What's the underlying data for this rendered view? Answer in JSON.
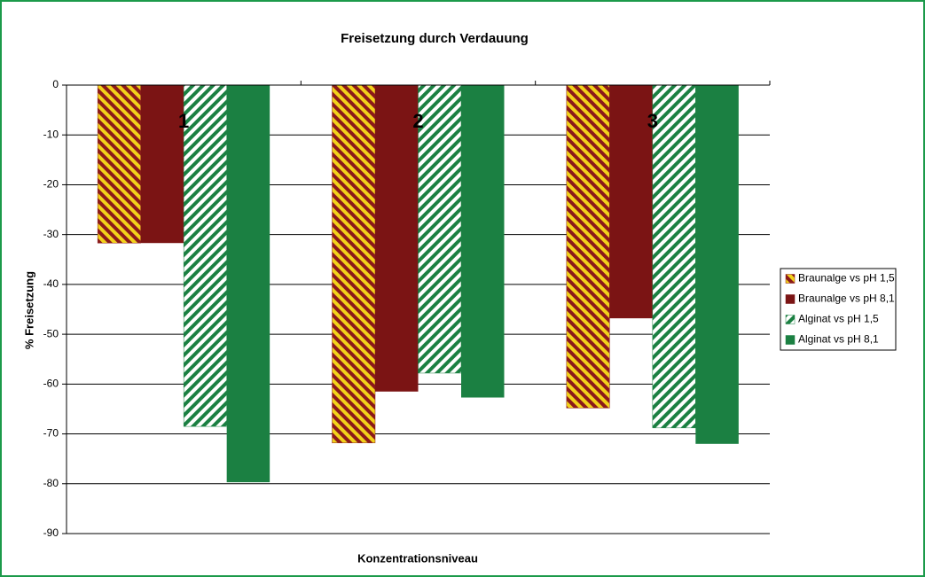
{
  "chart_data": {
    "type": "bar",
    "title": "Freisetzung durch Verdauung",
    "x_label": "Konzentrationsniveau",
    "y_label": "% Freisetzung",
    "categories": [
      "1",
      "2",
      "3"
    ],
    "series": [
      {
        "name": "Braunalge vs pH 1,5",
        "color": "#8b1a1a",
        "stripe_color": "#f2d21b",
        "values": [
          -31.7,
          -71.8,
          -64.8
        ]
      },
      {
        "name": "Braunalge vs pH 8,1",
        "color": "#7b1414",
        "values": [
          -31.7,
          -61.5,
          -46.8
        ]
      },
      {
        "name": "Alginat vs pH 1,5",
        "color": "#1b8042",
        "stripe_color": "#ffffff",
        "values": [
          -68.5,
          -57.8,
          -68.8
        ]
      },
      {
        "name": "Alginat vs pH 8,1",
        "color": "#1b8042",
        "values": [
          -79.7,
          -62.7,
          -72.0
        ]
      }
    ],
    "ylim": [
      -90,
      0
    ],
    "yticks": [
      0,
      -10,
      -20,
      -30,
      -40,
      -50,
      -60,
      -70,
      -80,
      -90
    ],
    "grid": true,
    "legend": "right"
  }
}
